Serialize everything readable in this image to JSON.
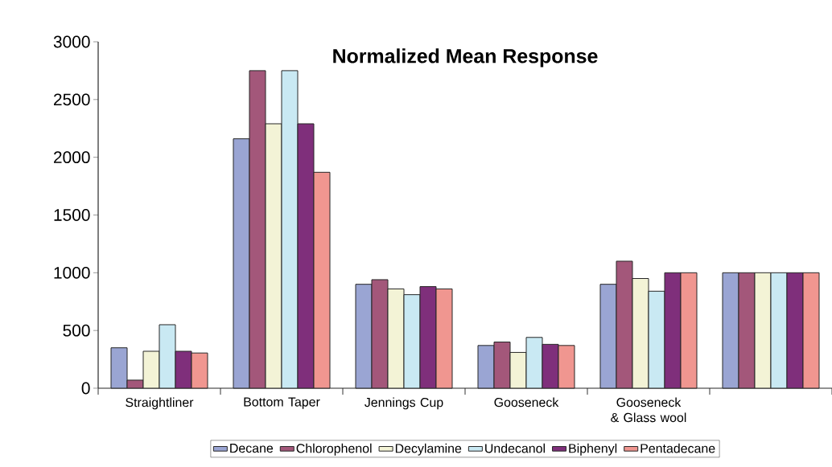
{
  "chart_data": {
    "type": "bar",
    "title": "Normalized Mean Response",
    "categories": [
      "Straightliner",
      "Bottom Taper",
      "Jennings Cup",
      "Gooseneck",
      "Gooseneck & Glass wool",
      null
    ],
    "series": [
      {
        "name": "Decane",
        "color": "#9aa5d3",
        "values": [
          350,
          2160,
          900,
          370,
          900,
          1000
        ]
      },
      {
        "name": "Chlorophenol",
        "color": "#a3577a",
        "values": [
          70,
          2750,
          940,
          400,
          1100,
          1000
        ]
      },
      {
        "name": "Decylamine",
        "color": "#f3f3d6",
        "values": [
          320,
          2290,
          860,
          310,
          950,
          1000
        ]
      },
      {
        "name": "Undecanol",
        "color": "#c9e9f3",
        "values": [
          550,
          2750,
          810,
          440,
          840,
          1000
        ]
      },
      {
        "name": "Biphenyl",
        "color": "#7f2f7b",
        "values": [
          320,
          2290,
          880,
          380,
          1000,
          1000
        ]
      },
      {
        "name": "Pentadecane",
        "color": "#f09690",
        "values": [
          305,
          1870,
          860,
          370,
          1000,
          1000
        ]
      }
    ],
    "ylim": [
      0,
      3000
    ],
    "yticks": [
      0,
      500,
      1000,
      1500,
      2000,
      2500,
      3000
    ],
    "grid": false,
    "legend": "bottom"
  }
}
